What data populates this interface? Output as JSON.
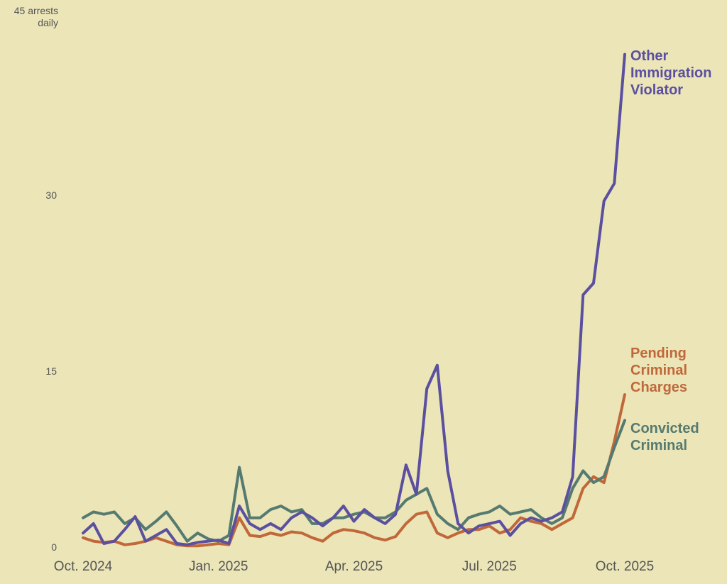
{
  "chart_data": {
    "type": "line",
    "categories": [
      "Oct. 2024",
      null,
      null,
      null,
      null,
      null,
      null,
      null,
      null,
      null,
      null,
      null,
      null,
      "Jan. 2025",
      null,
      null,
      null,
      null,
      null,
      null,
      null,
      null,
      null,
      null,
      null,
      null,
      "Apr. 2025",
      null,
      null,
      null,
      null,
      null,
      null,
      null,
      null,
      null,
      null,
      null,
      null,
      "Jul. 2025",
      null,
      null,
      null,
      null,
      null,
      null,
      null,
      null,
      null,
      null,
      null,
      null,
      "Oct. 2025"
    ],
    "series": [
      {
        "name": "Pending Criminal Charges",
        "color": "#c0683a",
        "values": [
          0.8,
          0.5,
          0.4,
          0.5,
          0.2,
          0.3,
          0.5,
          0.8,
          0.5,
          0.2,
          0.1,
          0.1,
          0.2,
          0.3,
          0.2,
          2.5,
          1.0,
          0.9,
          1.2,
          1.0,
          1.3,
          1.2,
          0.8,
          0.5,
          1.2,
          1.5,
          1.4,
          1.2,
          0.8,
          0.6,
          0.9,
          2.0,
          2.8,
          3.0,
          1.2,
          0.8,
          1.2,
          1.5,
          1.5,
          1.8,
          1.2,
          1.5,
          2.5,
          2.2,
          2.0,
          1.5,
          2.0,
          2.5,
          5.0,
          6.0,
          5.5,
          9.0,
          13.0
        ]
      },
      {
        "name": "Convicted Criminal",
        "color": "#557a70",
        "values": [
          2.5,
          3.0,
          2.8,
          3.0,
          2.0,
          2.5,
          1.5,
          2.2,
          3.0,
          1.8,
          0.5,
          1.2,
          0.7,
          0.5,
          1.0,
          6.8,
          2.5,
          2.5,
          3.2,
          3.5,
          3.0,
          3.2,
          2.0,
          2.0,
          2.5,
          2.5,
          2.8,
          3.0,
          2.5,
          2.5,
          3.0,
          4.0,
          4.5,
          5.0,
          2.8,
          2.0,
          1.5,
          2.5,
          2.8,
          3.0,
          3.5,
          2.8,
          3.0,
          3.2,
          2.5,
          2.0,
          2.5,
          5.0,
          6.5,
          5.5,
          6.0,
          8.5,
          10.8
        ]
      },
      {
        "name": "Other Immigration Violator",
        "color": "#5b4fa0",
        "values": [
          1.2,
          2.0,
          0.3,
          0.5,
          1.5,
          2.6,
          0.5,
          1.0,
          1.5,
          0.3,
          0.2,
          0.4,
          0.5,
          0.6,
          0.3,
          3.5,
          2.0,
          1.5,
          2.0,
          1.5,
          2.5,
          3.0,
          2.5,
          1.8,
          2.5,
          3.5,
          2.2,
          3.2,
          2.5,
          2.0,
          2.8,
          7.0,
          4.5,
          13.5,
          15.5,
          6.5,
          2.0,
          1.2,
          1.8,
          2.0,
          2.2,
          1.0,
          2.0,
          2.5,
          2.2,
          2.5,
          3.0,
          6.0,
          21.5,
          22.5,
          29.5,
          31.0,
          42.0
        ]
      }
    ],
    "ylim": [
      0,
      45
    ],
    "yticks": [
      0,
      15,
      30,
      {
        "value": 45,
        "label": "45 arrests daily"
      }
    ],
    "grid": false
  }
}
